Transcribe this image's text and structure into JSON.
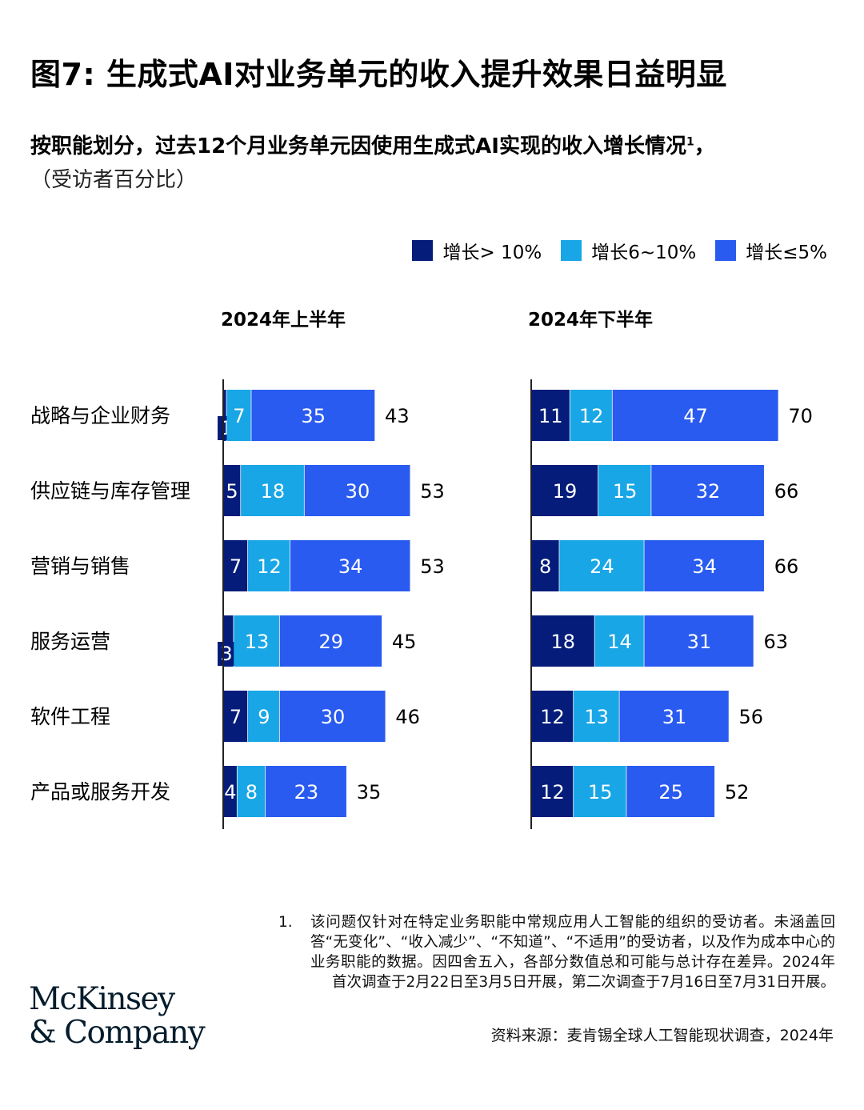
{
  "title": "图7: 生成式AI对业务单元的收入提升效果日益明显",
  "subtitle": "按职能划分，过去12个月业务单元因使用生成式AI实现的收入增长情况",
  "subtitle_sup": "1",
  "subtitle_suffix": "，",
  "subtitle2": "（受访者百分比）",
  "legend": [
    {
      "label": "增长> 10%",
      "color": "#051c7a"
    },
    {
      "label": "增长6~10%",
      "color": "#19a6e6"
    },
    {
      "label": "增长≤5%",
      "color": "#2a5bf0"
    }
  ],
  "chart_data": {
    "type": "bar",
    "orientation": "horizontal",
    "stacked": true,
    "categories": [
      "战略与企业财务",
      "供应链与库存管理",
      "营销与销售",
      "服务运营",
      "软件工程",
      "产品或服务开发"
    ],
    "panels": [
      {
        "title": "2024年上半年",
        "series": [
          {
            "name": "增长> 10%",
            "values": [
              1,
              5,
              7,
              3,
              7,
              4
            ]
          },
          {
            "name": "增长6~10%",
            "values": [
              7,
              18,
              12,
              13,
              9,
              8
            ]
          },
          {
            "name": "增长≤5%",
            "values": [
              35,
              30,
              34,
              29,
              30,
              23
            ]
          }
        ],
        "totals": [
          43,
          53,
          53,
          45,
          46,
          35
        ]
      },
      {
        "title": "2024年下半年",
        "series": [
          {
            "name": "增长> 10%",
            "values": [
              11,
              19,
              8,
              18,
              12,
              12
            ]
          },
          {
            "name": "增长6~10%",
            "values": [
              12,
              15,
              24,
              14,
              13,
              15
            ]
          },
          {
            "name": "增长≤5%",
            "values": [
              47,
              32,
              34,
              31,
              31,
              25
            ]
          }
        ],
        "totals": [
          70,
          66,
          66,
          63,
          56,
          52
        ]
      }
    ]
  },
  "footnote_number": "1.",
  "footnote": "该问题仅针对在特定业务职能中常规应用人工智能的组织的受访者。未涵盖回答“无变化”、“收入减少”、“不知道”、“不适用”的受访者，以及作为成本中心的业务职能的数据。因四舍五入，各部分数值总和可能与总计存在差异。2024年首次调查于2月22日至3月5日开展，第二次调查于7月16日至7月31日开展。",
  "source": "资料来源：麦肯锡全球人工智能现状调查，2024年",
  "logo_line1": "McKinsey",
  "logo_line2": "& Company"
}
